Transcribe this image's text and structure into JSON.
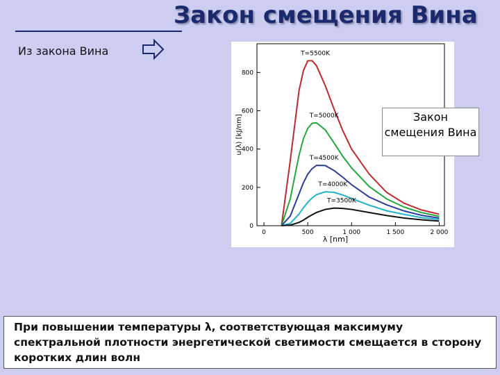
{
  "slide": {
    "title": "Закон смещения Вина",
    "subtitle": "Из закона Вина",
    "callout": "Закон смещения Вина",
    "footer": "При повышении температуры λ, соответствующая максимуму спектральной плотности энергетической светимости  смещается в сторону коротких длин волн"
  },
  "chart_data": {
    "type": "line",
    "xlabel": "λ [nm]",
    "ylabel": "u(λ) [kJ/nm]",
    "x": [
      200,
      300,
      400,
      450,
      500,
      550,
      600,
      700,
      800,
      900,
      1000,
      1200,
      1400,
      1600,
      1800,
      2000
    ],
    "series": [
      {
        "name": "T=5500K",
        "color": "#c0282c",
        "values": [
          0,
          339,
          705,
          809,
          861,
          861,
          835,
          731,
          609,
          496,
          400,
          270,
          174,
          117,
          82,
          60
        ]
      },
      {
        "name": "T=5000K",
        "color": "#22a83a",
        "values": [
          0,
          140,
          367,
          454,
          508,
          535,
          537,
          500,
          432,
          362,
          302,
          205,
          140,
          97,
          68,
          49
        ]
      },
      {
        "name": "T=4500K",
        "color": "#2c3c9c",
        "values": [
          0,
          50,
          166,
          224,
          269,
          298,
          315,
          314,
          288,
          253,
          214,
          150,
          109,
          77,
          54,
          40
        ]
      },
      {
        "name": "T=4000K",
        "color": "#22b4c8",
        "values": [
          0,
          12,
          61,
          93,
          122,
          145,
          162,
          177,
          174,
          160,
          142,
          107,
          78,
          59,
          42,
          32
        ]
      },
      {
        "name": "T=3500K",
        "color": "#111111",
        "values": [
          0,
          3,
          17,
          29,
          44,
          57,
          69,
          85,
          92,
          90,
          85,
          69,
          53,
          40,
          31,
          24
        ]
      }
    ],
    "xlim": [
      -80,
      2060
    ],
    "ylim": [
      0,
      950
    ],
    "xticks": [
      0,
      500,
      {
        "value": 1000,
        "label": "1 000"
      },
      {
        "value": 1500,
        "label": "1 500"
      },
      {
        "value": 2000,
        "label": "2 000"
      }
    ],
    "yticks": [
      0,
      200,
      400,
      600,
      800
    ],
    "grid": false
  }
}
